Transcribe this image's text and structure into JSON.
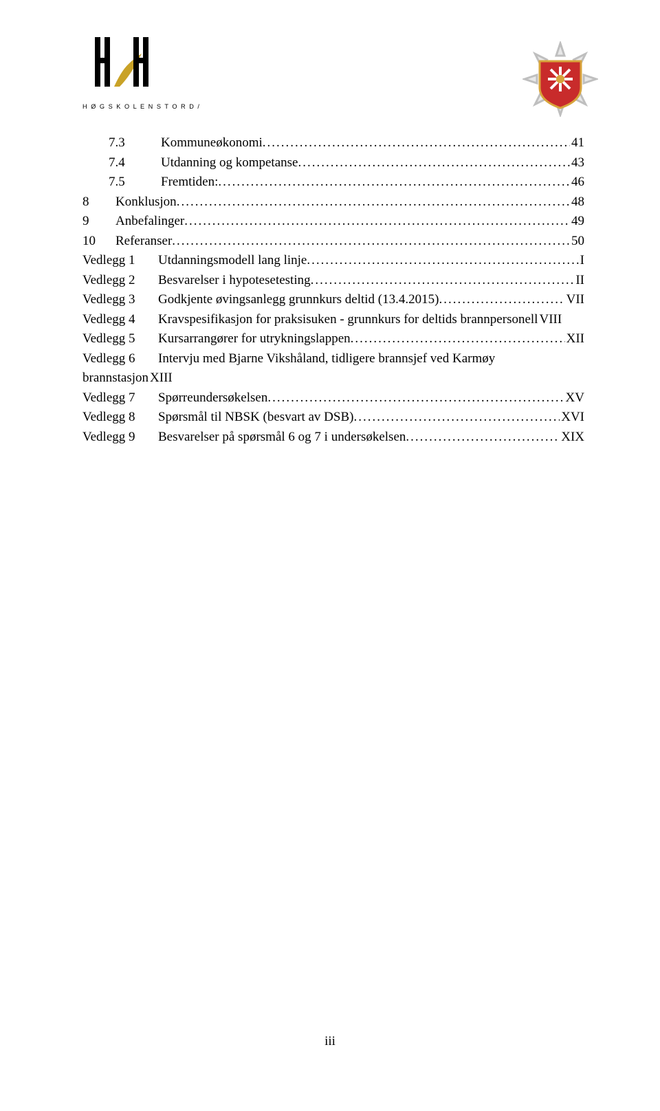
{
  "logos": {
    "left_alt": "HSH logo",
    "left_caption": "H Ø G S K O L E N   S T O R D / H A U G E S U N D",
    "right_alt": "Fire brigade emblem"
  },
  "toc": [
    {
      "indent": 2,
      "num": "7.3",
      "label": "Kommuneøkonomi",
      "page": "41"
    },
    {
      "indent": 2,
      "num": "7.4",
      "label": "Utdanning og kompetanse",
      "page": "43"
    },
    {
      "indent": 2,
      "num": "7.5",
      "label": "Fremtiden:",
      "page": "46"
    },
    {
      "indent": 1,
      "num": "8",
      "label": "Konklusjon",
      "page": "48"
    },
    {
      "indent": 1,
      "num": "9",
      "label": "Anbefalinger",
      "page": "49"
    },
    {
      "indent": 1,
      "num": "10",
      "label": "Referanser",
      "page": "50"
    },
    {
      "indent": 0,
      "vedlegg": "Vedlegg 1",
      "label": "Utdanningsmodell lang linje",
      "page": "I"
    },
    {
      "indent": 0,
      "vedlegg": "Vedlegg 2",
      "label": "Besvarelser i hypotesetesting",
      "page": "II"
    },
    {
      "indent": 0,
      "vedlegg": "Vedlegg 3",
      "label": "Godkjente øvingsanlegg grunnkurs deltid (13.4.2015)",
      "page": "VII"
    },
    {
      "indent": 0,
      "vedlegg": "Vedlegg 4",
      "label": "Kravspesifikasjon for praksisuken - grunnkurs for deltids brannpersonell",
      "page": "VIII",
      "nolead": true
    },
    {
      "indent": 0,
      "vedlegg": "Vedlegg 5",
      "label": "Kursarrangører for utrykningslappen",
      "page": "XII"
    },
    {
      "indent": 0,
      "vedlegg": "Vedlegg 6",
      "label": "Intervju med Bjarne Vikshåland, tidligere brannsjef ved Karmøy",
      "page": "",
      "nolead": true,
      "nopage": true
    },
    {
      "indent": 0,
      "continuation": true,
      "label": "brannstasjon",
      "page": "XIII",
      "nolead": true
    },
    {
      "indent": 0,
      "vedlegg": "Vedlegg 7",
      "label": "Spørreundersøkelsen",
      "page": "XV"
    },
    {
      "indent": 0,
      "vedlegg": "Vedlegg 8",
      "label": "Spørsmål til NBSK (besvart av DSB)",
      "page": "XVI"
    },
    {
      "indent": 0,
      "vedlegg": "Vedlegg 9",
      "label": "Besvarelser på spørsmål 6 og 7 i undersøkelsen",
      "page": "XIX"
    }
  ],
  "page_number": "iii",
  "colors": {
    "text": "#000000",
    "bg": "#ffffff",
    "emblem_red": "#c82b2b",
    "emblem_gold": "#d8a43b",
    "emblem_gray": "#bfbfbf",
    "hsh_gold": "#c9a227"
  }
}
